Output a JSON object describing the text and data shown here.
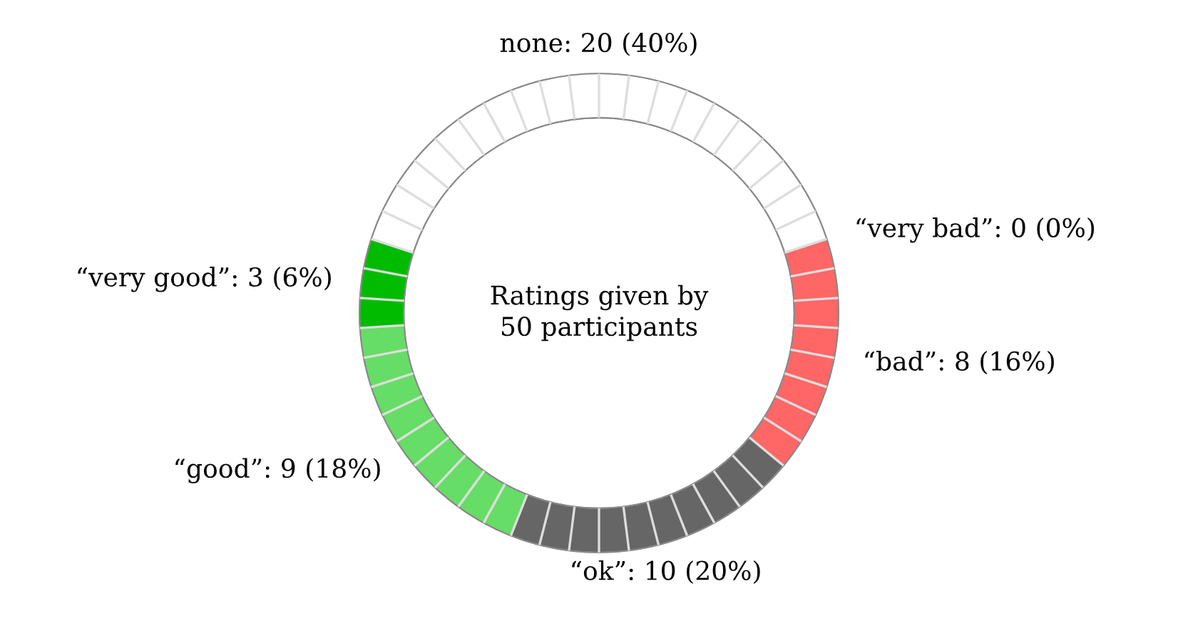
{
  "chart_data": {
    "type": "donut",
    "title": "Ratings given by\n50 participants",
    "categories": [
      "none",
      "“very bad”",
      "“bad”",
      "“ok”",
      "“good”",
      "“very good”"
    ],
    "values": [
      20,
      0,
      8,
      10,
      9,
      3
    ],
    "colors": [
      "#ffffff",
      "#ff6666",
      "#ff6666",
      "#666666",
      "#66dd66",
      "#00bb00"
    ],
    "value_labels": [
      ": 20 (40%)",
      ": 0 (0%)",
      ": 8 (16%)",
      ": 10 (20%)",
      ": 9 (18%)",
      ": 3 (6%)"
    ]
  }
}
